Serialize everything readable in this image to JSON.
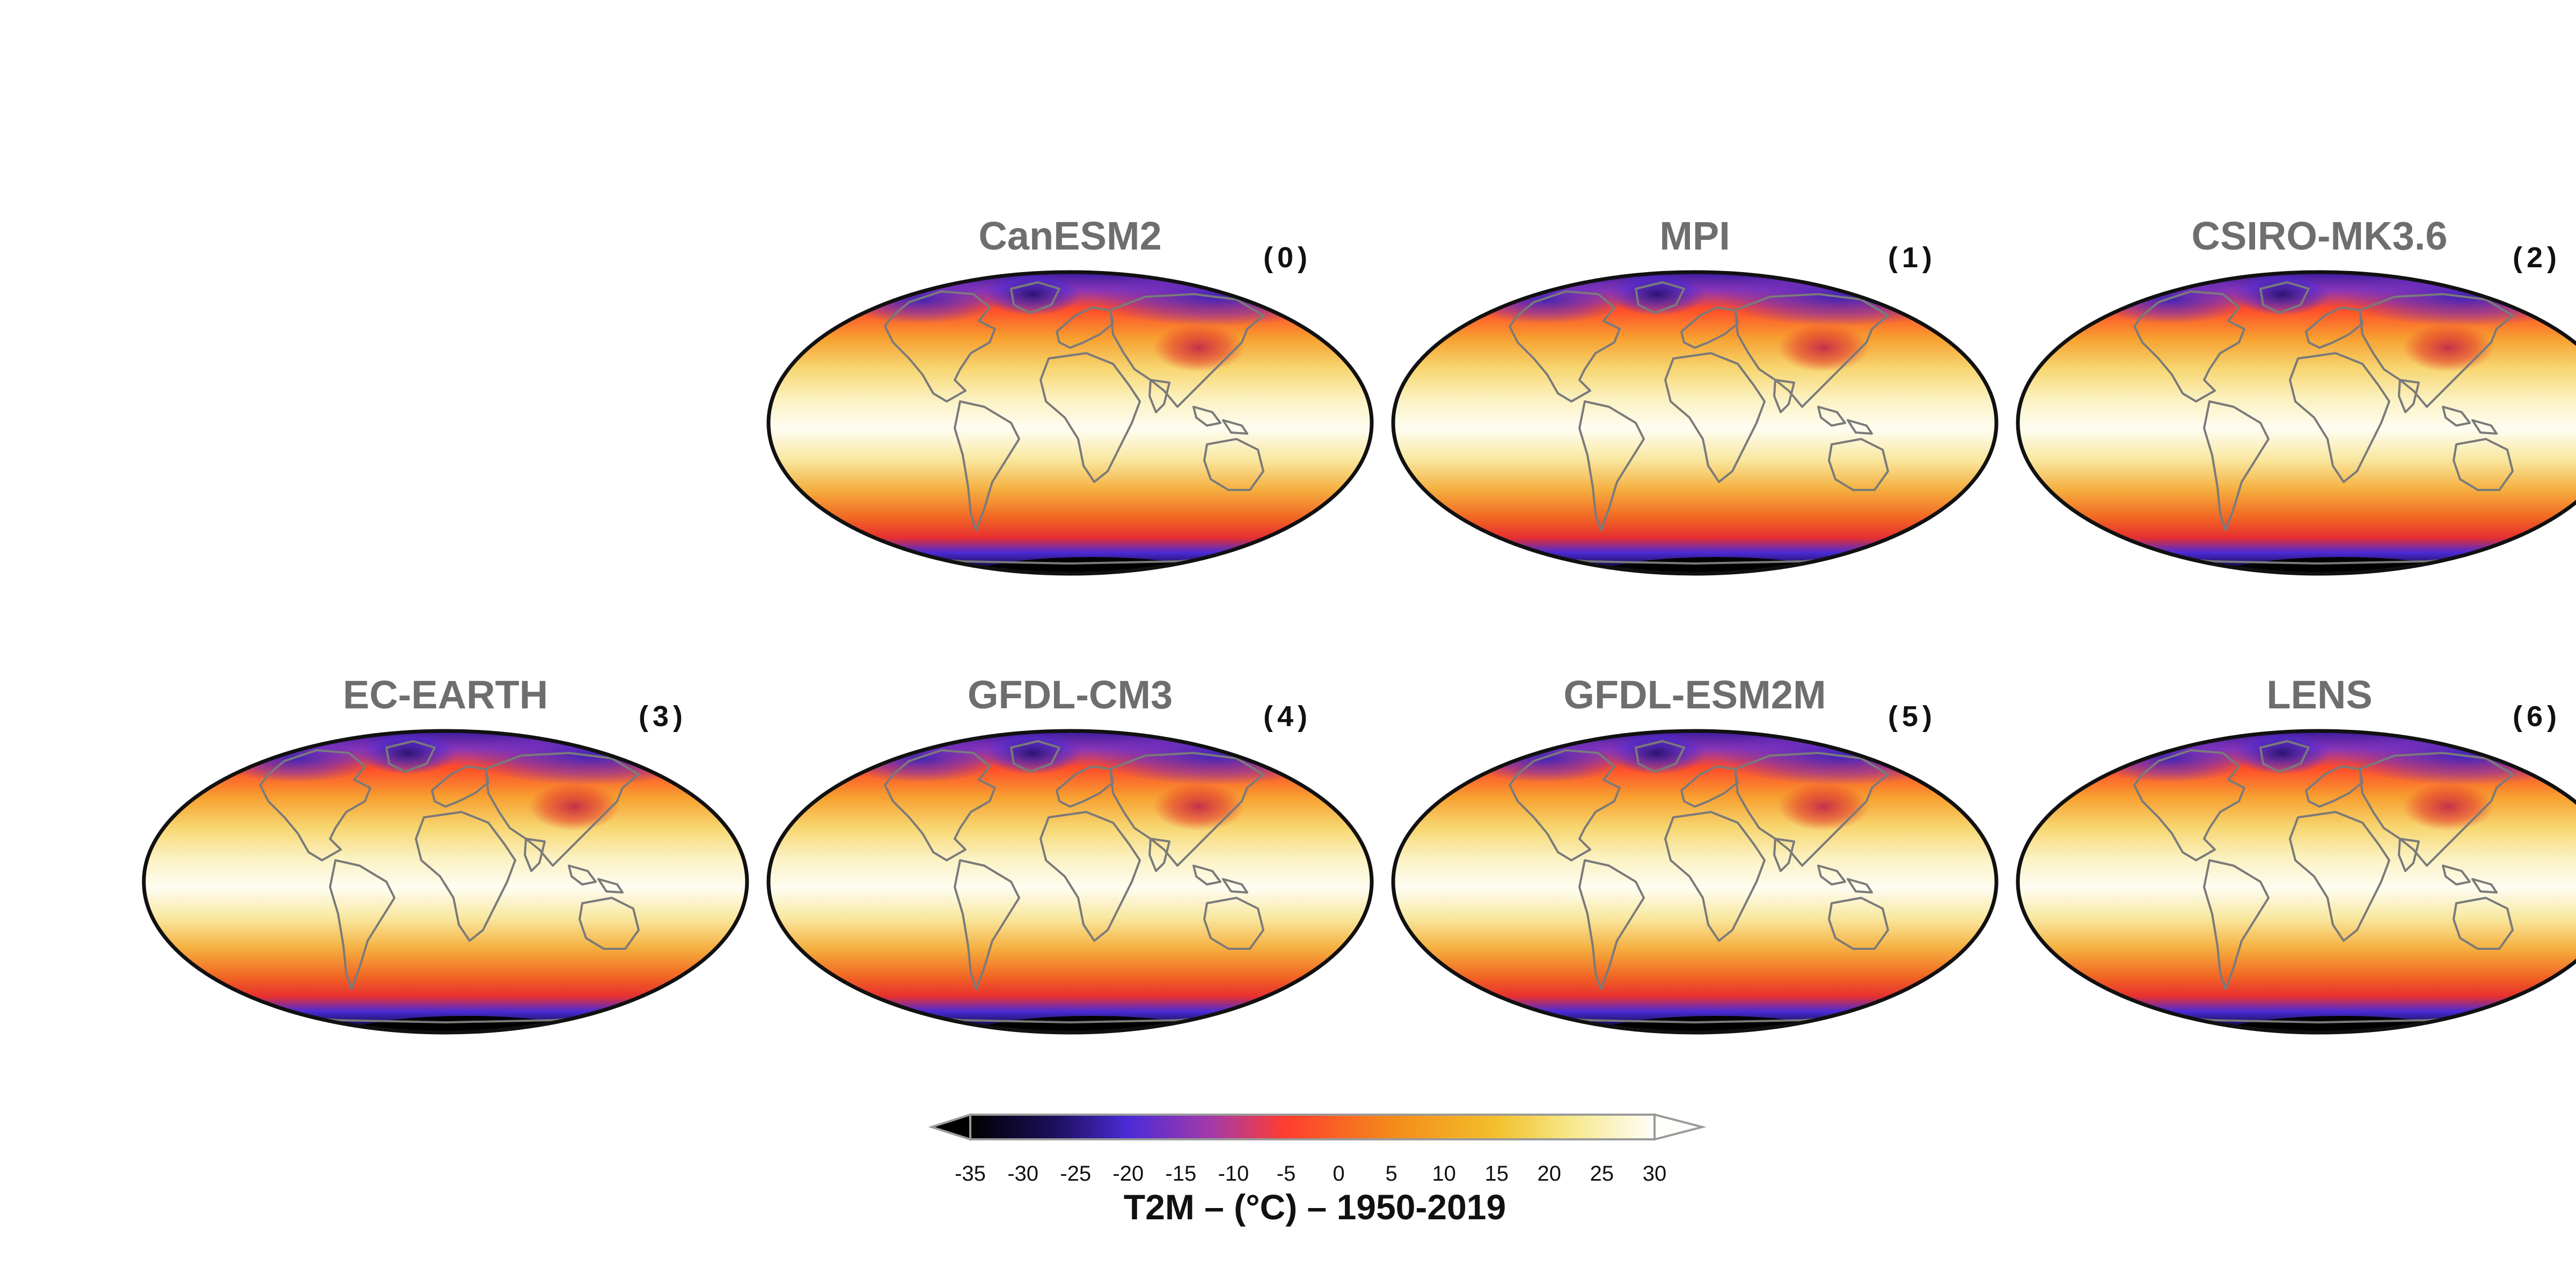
{
  "figure": {
    "variable_title": "T2M – (°C) – 1950-2019"
  },
  "panels": [
    {
      "name": "CanESM2",
      "index": "(0)",
      "row": 0,
      "col": 1
    },
    {
      "name": "MPI",
      "index": "(1)",
      "row": 0,
      "col": 2
    },
    {
      "name": "CSIRO-MK3.6",
      "index": "(2)",
      "row": 0,
      "col": 3
    },
    {
      "name": "EC-EARTH",
      "index": "(3)",
      "row": 1,
      "col": 0
    },
    {
      "name": "GFDL-CM3",
      "index": "(4)",
      "row": 1,
      "col": 1
    },
    {
      "name": "GFDL-ESM2M",
      "index": "(5)",
      "row": 1,
      "col": 2
    },
    {
      "name": "LENS",
      "index": "(6)",
      "row": 1,
      "col": 3
    }
  ],
  "colorbar": {
    "ticks": [
      "-35",
      "-30",
      "-25",
      "-20",
      "-15",
      "-10",
      "-5",
      "0",
      "5",
      "10",
      "15",
      "20",
      "25",
      "30"
    ],
    "range": [
      -35,
      30
    ],
    "extend": "both",
    "stops": [
      {
        "value": -35,
        "color": "#000000"
      },
      {
        "value": -27,
        "color": "#1c0f5c"
      },
      {
        "value": -20,
        "color": "#4b2bd6"
      },
      {
        "value": -12,
        "color": "#a63aa8"
      },
      {
        "value": -5,
        "color": "#ff3d2e"
      },
      {
        "value": 5,
        "color": "#f48a1a"
      },
      {
        "value": 15,
        "color": "#f2c02c"
      },
      {
        "value": 22,
        "color": "#f7e88a"
      },
      {
        "value": 30,
        "color": "#fefefa"
      }
    ]
  },
  "projection": "Mollweide",
  "colors": {
    "title_gray": "#6e6e6e",
    "coastline": "#7a7a7a",
    "map_rim": "#111111"
  }
}
